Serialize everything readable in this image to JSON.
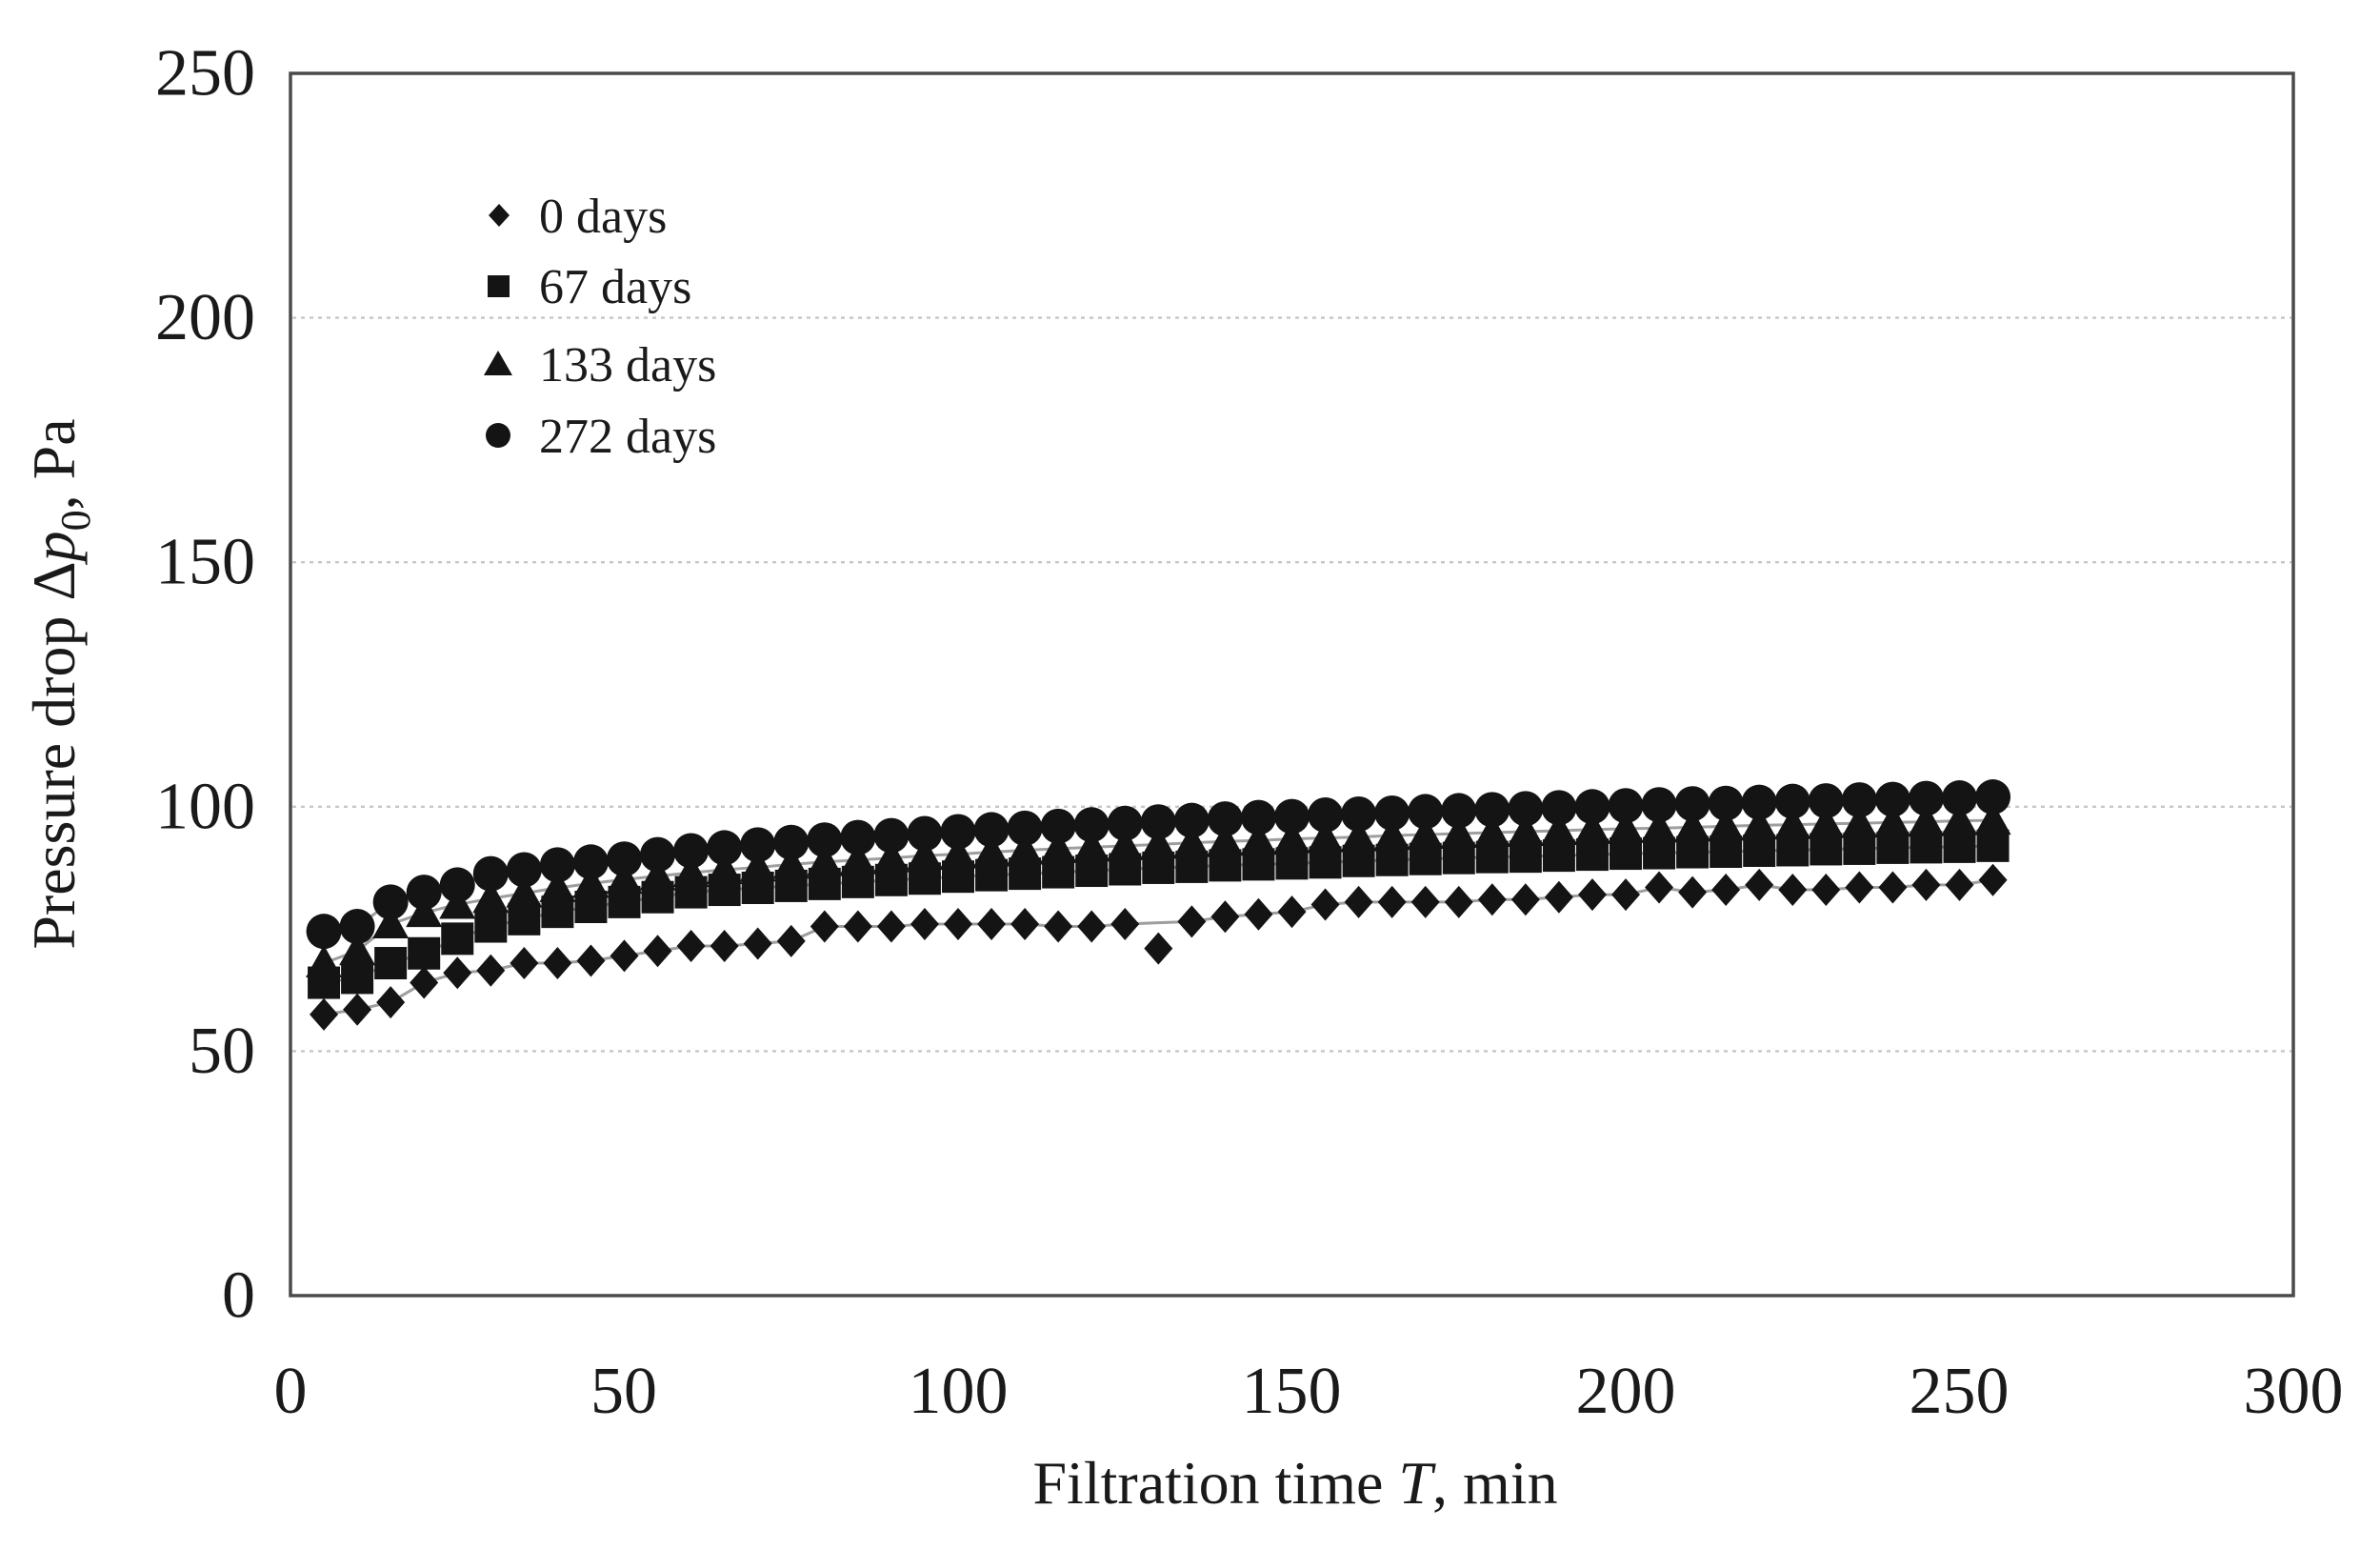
{
  "chart_data": {
    "type": "scatter",
    "title": "",
    "xlabel": "Filtration time T, min",
    "ylabel": "Pressure drop Δp0, Pa",
    "xlabel_parts": {
      "prefix": "Filtration time ",
      "variable": "T",
      "suffix": ", min"
    },
    "ylabel_parts": {
      "prefix": "Pressure drop Δ",
      "variable": "p",
      "subscript": "0",
      "suffix": ", Pa"
    },
    "xlim": [
      0,
      300
    ],
    "ylim": [
      0,
      250
    ],
    "x_ticks": [
      "0",
      "50",
      "100",
      "150",
      "200",
      "250",
      "300"
    ],
    "y_ticks_top_to_bottom": [
      "250",
      "200",
      "150",
      "100",
      "50",
      "0"
    ],
    "grid": "horizontal-dotted-light-gray",
    "legend_position": "upper-left-inside",
    "marker_color": "#141414",
    "trend_line_color": "#9e9e9e",
    "axis_color": "#4a4a4a",
    "gridline_color": "#c6c6c6",
    "x": [
      5,
      10,
      15,
      20,
      25,
      30,
      35,
      40,
      45,
      50,
      55,
      60,
      65,
      70,
      75,
      80,
      85,
      90,
      95,
      100,
      105,
      110,
      115,
      120,
      125,
      130,
      135,
      140,
      145,
      150,
      155,
      160,
      165,
      170,
      175,
      180,
      185,
      190,
      195,
      200,
      205,
      210,
      215,
      220,
      225,
      230,
      235,
      240,
      245,
      250,
      255
    ],
    "series": [
      {
        "name": "0 days",
        "marker": "diamond",
        "outlier_index": 25,
        "values": [
          57.5,
          58.5,
          60,
          64,
          66,
          66.5,
          68,
          68,
          68.5,
          69.5,
          70.5,
          71.5,
          71.5,
          72,
          72.5,
          75.5,
          75.5,
          75.5,
          76,
          76,
          76,
          76,
          75.5,
          75.5,
          76,
          71,
          76.5,
          77.5,
          78,
          78.5,
          80,
          80.5,
          80.5,
          80.5,
          80.5,
          81,
          81,
          81.5,
          82,
          82,
          83.5,
          82.5,
          83,
          84,
          83,
          83,
          83.5,
          83.5,
          84,
          84,
          85
        ]
      },
      {
        "name": "67 days",
        "marker": "square",
        "outlier_index": null,
        "values": [
          64,
          65,
          68,
          70,
          73,
          75.5,
          77,
          78.5,
          79.5,
          80.5,
          81.5,
          82.5,
          83,
          83.4,
          83.8,
          84.2,
          84.6,
          85,
          85.3,
          85.7,
          86,
          86.3,
          86.6,
          86.9,
          87.2,
          87.5,
          87.7,
          88,
          88.2,
          88.4,
          88.6,
          88.9,
          89.1,
          89.3,
          89.5,
          89.7,
          89.8,
          90,
          90.2,
          90.4,
          90.5,
          90.7,
          90.8,
          91,
          91.1,
          91.3,
          91.4,
          91.6,
          91.7,
          91.8,
          92
        ]
      },
      {
        "name": "133 days",
        "marker": "triangle",
        "outlier_index": null,
        "values": [
          68,
          70.5,
          76,
          78.3,
          80,
          81.2,
          82.3,
          83.4,
          84.3,
          85.1,
          85.8,
          86.5,
          87.1,
          87.6,
          88.2,
          88.7,
          89.1,
          89.5,
          90,
          90.3,
          90.7,
          91.1,
          91.4,
          91.7,
          92,
          92.3,
          92.6,
          92.9,
          93.1,
          93.4,
          93.6,
          93.8,
          94.1,
          94.3,
          94.5,
          94.7,
          94.9,
          95.1,
          95.3,
          95.5,
          95.6,
          95.8,
          96,
          96.2,
          96.3,
          96.5,
          96.6,
          96.8,
          96.9,
          97.1,
          97.2
        ]
      },
      {
        "name": "272 days",
        "marker": "circle",
        "outlier_index": null,
        "values": [
          74.5,
          75.5,
          80.5,
          82.5,
          84,
          86.3,
          87.1,
          88.1,
          88.7,
          89.3,
          90.2,
          91,
          91.6,
          92.2,
          92.7,
          93.2,
          93.7,
          94.1,
          94.5,
          94.9,
          95.3,
          95.6,
          96,
          96.3,
          96.6,
          96.9,
          97.2,
          97.5,
          97.8,
          98,
          98.3,
          98.5,
          98.7,
          99,
          99.2,
          99.4,
          99.6,
          99.8,
          100,
          100.2,
          100.4,
          100.6,
          100.7,
          100.9,
          101.1,
          101.2,
          101.4,
          101.5,
          101.7,
          101.8,
          102
        ]
      }
    ]
  }
}
